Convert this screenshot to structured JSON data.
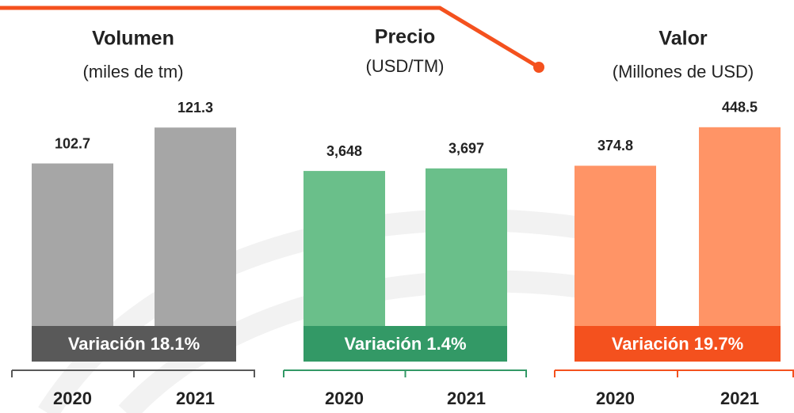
{
  "chart_data": [
    {
      "type": "bar",
      "title": "Volumen",
      "subtitle": "(miles de tm)",
      "categories": [
        "2020",
        "2021"
      ],
      "values": [
        102.7,
        121.3
      ],
      "color": "#a6a6a6",
      "ylim": [
        0,
        130
      ],
      "annotation": "Variación 18.1%",
      "annotation_color": "#595959",
      "bracket_color": "#595959"
    },
    {
      "type": "bar",
      "title": "Precio",
      "subtitle": "(USD/TM)",
      "categories": [
        "2020",
        "2021"
      ],
      "values": [
        3648,
        3697
      ],
      "value_labels": [
        "3,648",
        "3,697"
      ],
      "color": "#6abf8a",
      "ylim": [
        0,
        4800
      ],
      "annotation": "Variación 1.4%",
      "annotation_color": "#339966",
      "bracket_color": "#339966"
    },
    {
      "type": "bar",
      "title": "Valor",
      "subtitle": "(Millones de USD)",
      "categories": [
        "2020",
        "2021"
      ],
      "values": [
        374.8,
        448.5
      ],
      "color": "#ff9466",
      "ylim": [
        0,
        480
      ],
      "annotation": "Variación 19.7%",
      "annotation_color": "#f4511e",
      "bracket_color": "#f4511e"
    }
  ]
}
